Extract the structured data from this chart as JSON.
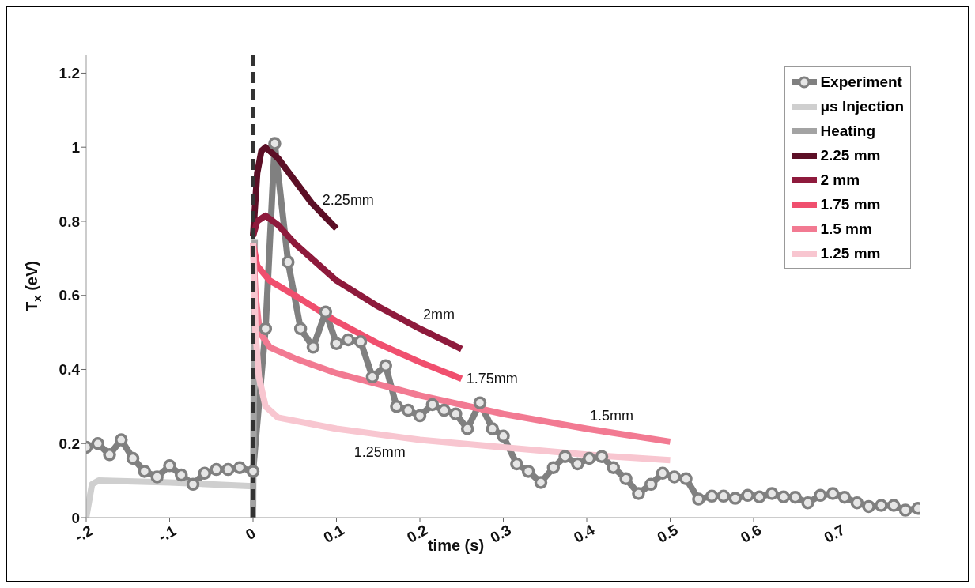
{
  "chart_data": {
    "type": "line",
    "xlabel": "time (s)",
    "ylabel": "T$_{x}$ (eV)",
    "xlim": [
      -0.2,
      0.8
    ],
    "xticks": [
      {
        "value": -0.2,
        "label": "-.2"
      },
      {
        "value": -0.1,
        "label": "-.1"
      },
      0,
      0.1,
      0.2,
      0.3,
      0.4,
      0.5,
      0.6,
      0.7
    ],
    "ylim": [
      0,
      1.25
    ],
    "yticks": [
      0,
      0.2,
      0.4,
      0.6,
      0.8,
      1,
      1.2
    ],
    "grid": false,
    "legend": "top right",
    "ref_lines": [
      {
        "axis": "x",
        "value": 0,
        "color": "#333333",
        "line_style": "dashed"
      }
    ],
    "annotations": [
      {
        "text": "2.25mm",
        "x": 0.07,
        "y": 0.85
      },
      {
        "text": "2mm",
        "x": 0.2,
        "y": 0.51
      },
      {
        "text": "1.75mm",
        "x": 0.25,
        "y": 0.375
      },
      {
        "text": "1.5mm",
        "x": 0.4,
        "y": 0.24
      },
      {
        "text": "1.25mm",
        "x": 0.14,
        "y": 0.228
      }
    ],
    "series": [
      {
        "name": "Experiment",
        "color": "#808080",
        "marker": "circle",
        "x": [
          -0.2,
          -0.186,
          -0.172,
          -0.158,
          -0.144,
          -0.13,
          -0.115,
          -0.1,
          -0.086,
          -0.072,
          -0.058,
          -0.044,
          -0.03,
          -0.016,
          0,
          0.015,
          0.026,
          0.042,
          0.057,
          0.072,
          0.087,
          0.1,
          0.114,
          0.129,
          0.143,
          0.159,
          0.172,
          0.186,
          0.2,
          0.215,
          0.229,
          0.243,
          0.257,
          0.272,
          0.287,
          0.3,
          0.316,
          0.33,
          0.345,
          0.36,
          0.374,
          0.389,
          0.403,
          0.418,
          0.432,
          0.447,
          0.462,
          0.477,
          0.491,
          0.505,
          0.519,
          0.534,
          0.55,
          0.564,
          0.578,
          0.593,
          0.607,
          0.622,
          0.636,
          0.65,
          0.665,
          0.68,
          0.695,
          0.709,
          0.724,
          0.738,
          0.753,
          0.768,
          0.782,
          0.797
        ],
        "values": [
          0.19,
          0.2,
          0.17,
          0.21,
          0.16,
          0.125,
          0.11,
          0.14,
          0.115,
          0.09,
          0.12,
          0.13,
          0.13,
          0.135,
          0.125,
          0.51,
          1.01,
          0.69,
          0.51,
          0.46,
          0.555,
          0.47,
          0.48,
          0.475,
          0.38,
          0.41,
          0.3,
          0.29,
          0.275,
          0.305,
          0.29,
          0.28,
          0.24,
          0.31,
          0.24,
          0.22,
          0.145,
          0.125,
          0.095,
          0.135,
          0.165,
          0.145,
          0.16,
          0.165,
          0.135,
          0.105,
          0.065,
          0.09,
          0.12,
          0.11,
          0.105,
          0.05,
          0.058,
          0.058,
          0.052,
          0.06,
          0.056,
          0.065,
          0.056,
          0.055,
          0.04,
          0.06,
          0.065,
          0.055,
          0.04,
          0.03,
          0.033,
          0.033,
          0.02,
          0.025
        ]
      },
      {
        "name": "μs Injection",
        "color": "#cfcfcf",
        "x": [
          -0.2,
          -0.193,
          -0.185,
          -0.1,
          0
        ],
        "values": [
          0,
          0.09,
          0.1,
          0.095,
          0.085
        ]
      },
      {
        "name": "Heating",
        "color": "#a3a3a3",
        "x": [
          0,
          0.001,
          0.002
        ],
        "values": [
          0,
          0.4,
          0.75
        ]
      },
      {
        "name": "2.25 mm",
        "color": "#5c0f26",
        "x": [
          0,
          0.005,
          0.01,
          0.015,
          0.03,
          0.05,
          0.07,
          0.1
        ],
        "values": [
          0.76,
          0.93,
          0.99,
          1.0,
          0.97,
          0.91,
          0.85,
          0.78
        ]
      },
      {
        "name": "2 mm",
        "color": "#8e1a3c",
        "x": [
          0,
          0.005,
          0.015,
          0.03,
          0.05,
          0.1,
          0.15,
          0.2,
          0.25
        ],
        "values": [
          0.76,
          0.8,
          0.815,
          0.79,
          0.74,
          0.64,
          0.57,
          0.51,
          0.455
        ]
      },
      {
        "name": "1.75 mm",
        "color": "#f04f6e",
        "x": [
          0,
          0.005,
          0.02,
          0.05,
          0.1,
          0.15,
          0.2,
          0.25
        ],
        "values": [
          0.74,
          0.68,
          0.64,
          0.6,
          0.53,
          0.47,
          0.42,
          0.375
        ]
      },
      {
        "name": "1.5 mm",
        "color": "#f27a92",
        "x": [
          0,
          0.003,
          0.008,
          0.02,
          0.05,
          0.1,
          0.2,
          0.3,
          0.4,
          0.5
        ],
        "values": [
          0.74,
          0.6,
          0.5,
          0.46,
          0.43,
          0.39,
          0.33,
          0.28,
          0.24,
          0.205
        ]
      },
      {
        "name": "1.25 mm",
        "color": "#f8c6d0",
        "x": [
          0,
          0.003,
          0.007,
          0.015,
          0.03,
          0.1,
          0.2,
          0.3,
          0.4,
          0.5
        ],
        "values": [
          0.74,
          0.5,
          0.38,
          0.3,
          0.27,
          0.24,
          0.21,
          0.19,
          0.17,
          0.155
        ]
      }
    ]
  }
}
